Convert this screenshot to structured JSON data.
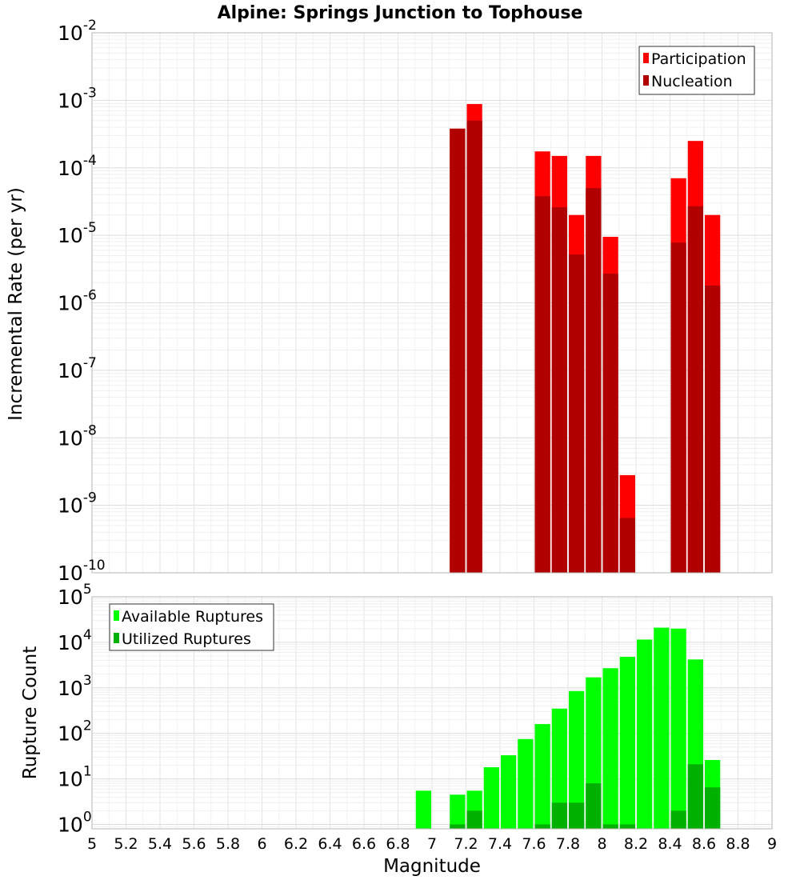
{
  "title": "Alpine: Springs Junction to Tophouse",
  "chart_data": [
    {
      "type": "bar",
      "name": "rate-panel",
      "ylabel": "Incremental Rate (per yr)",
      "yscale": "log",
      "ylim": [
        1e-10,
        0.01
      ],
      "ytick_exponents": [
        -10,
        -9,
        -8,
        -7,
        -6,
        -5,
        -4,
        -3,
        -2
      ],
      "ytick_base": "10",
      "xlim": [
        5,
        9
      ],
      "bin_width": 0.1,
      "grid": true,
      "legend_position": "top-right",
      "series": [
        {
          "name": "Participation",
          "color": "#ff0000",
          "points": [
            {
              "x": 7.15,
              "y": 0.00038
            },
            {
              "x": 7.25,
              "y": 0.00088
            },
            {
              "x": 7.65,
              "y": 0.000175
            },
            {
              "x": 7.75,
              "y": 0.00015
            },
            {
              "x": 7.85,
              "y": 2e-05
            },
            {
              "x": 7.95,
              "y": 0.00015
            },
            {
              "x": 8.05,
              "y": 9.5e-06
            },
            {
              "x": 8.15,
              "y": 2.8e-09
            },
            {
              "x": 8.45,
              "y": 7e-05
            },
            {
              "x": 8.55,
              "y": 0.00025
            },
            {
              "x": 8.65,
              "y": 2e-05
            }
          ]
        },
        {
          "name": "Nucleation",
          "color": "#b00000",
          "points": [
            {
              "x": 7.15,
              "y": 0.00038
            },
            {
              "x": 7.25,
              "y": 0.0005
            },
            {
              "x": 7.65,
              "y": 3.8e-05
            },
            {
              "x": 7.75,
              "y": 2.6e-05
            },
            {
              "x": 7.85,
              "y": 5.2e-06
            },
            {
              "x": 7.95,
              "y": 5e-05
            },
            {
              "x": 8.05,
              "y": 2.7e-06
            },
            {
              "x": 8.15,
              "y": 6.5e-10
            },
            {
              "x": 8.45,
              "y": 7.8e-06
            },
            {
              "x": 8.55,
              "y": 2.7e-05
            },
            {
              "x": 8.65,
              "y": 1.8e-06
            }
          ]
        }
      ]
    },
    {
      "type": "bar",
      "name": "count-panel",
      "ylabel": "Rupture Count",
      "xlabel": "Magnitude",
      "yscale": "log",
      "ylim": [
        0.8,
        100000.0
      ],
      "ytick_exponents": [
        0,
        1,
        2,
        3,
        4,
        5
      ],
      "ytick_base": "10",
      "xlim": [
        5,
        9
      ],
      "xticks": [
        "5",
        "5.2",
        "5.4",
        "5.6",
        "5.8",
        "6",
        "6.2",
        "6.4",
        "6.6",
        "6.8",
        "7",
        "7.2",
        "7.4",
        "7.6",
        "7.8",
        "8",
        "8.2",
        "8.4",
        "8.6",
        "8.8",
        "9"
      ],
      "bin_width": 0.1,
      "grid": true,
      "legend_position": "top-left",
      "series": [
        {
          "name": "Available Ruptures",
          "color": "#00ff00",
          "points": [
            {
              "x": 6.95,
              "y": 5.5
            },
            {
              "x": 7.15,
              "y": 4.5
            },
            {
              "x": 7.25,
              "y": 5.5
            },
            {
              "x": 7.35,
              "y": 18
            },
            {
              "x": 7.45,
              "y": 33
            },
            {
              "x": 7.55,
              "y": 75
            },
            {
              "x": 7.65,
              "y": 160
            },
            {
              "x": 7.75,
              "y": 350
            },
            {
              "x": 7.85,
              "y": 850
            },
            {
              "x": 7.95,
              "y": 1700
            },
            {
              "x": 8.05,
              "y": 2700
            },
            {
              "x": 8.15,
              "y": 4800
            },
            {
              "x": 8.25,
              "y": 11500
            },
            {
              "x": 8.35,
              "y": 21000
            },
            {
              "x": 8.45,
              "y": 20000
            },
            {
              "x": 8.55,
              "y": 4200
            },
            {
              "x": 8.65,
              "y": 26
            }
          ]
        },
        {
          "name": "Utilized Ruptures",
          "color": "#00b000",
          "points": [
            {
              "x": 7.15,
              "y": 1
            },
            {
              "x": 7.25,
              "y": 2
            },
            {
              "x": 7.65,
              "y": 1
            },
            {
              "x": 7.75,
              "y": 3
            },
            {
              "x": 7.85,
              "y": 3
            },
            {
              "x": 7.95,
              "y": 8
            },
            {
              "x": 8.05,
              "y": 1
            },
            {
              "x": 8.15,
              "y": 1
            },
            {
              "x": 8.45,
              "y": 2
            },
            {
              "x": 8.55,
              "y": 21
            },
            {
              "x": 8.65,
              "y": 6.5
            }
          ]
        }
      ]
    }
  ]
}
